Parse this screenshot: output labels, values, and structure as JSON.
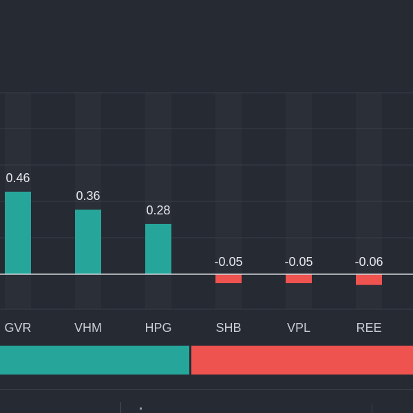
{
  "chart_data": {
    "type": "bar",
    "categories": [
      "GVR",
      "VHM",
      "HPG",
      "SHB",
      "VPL",
      "REE"
    ],
    "values": [
      0.46,
      0.36,
      0.28,
      -0.05,
      -0.05,
      -0.06
    ],
    "data_labels": [
      "0.46",
      "0.36",
      "0.28",
      "-0.05",
      "-0.05",
      "-0.06"
    ],
    "ylim": [
      -0.2,
      1.0
    ],
    "grid": true,
    "positive_color": "#26a69a",
    "negative_color": "#ef5350"
  },
  "ratio_bar": {
    "positive_fraction": 0.46,
    "positive_color": "#26a69a",
    "negative_color": "#ef5350"
  }
}
